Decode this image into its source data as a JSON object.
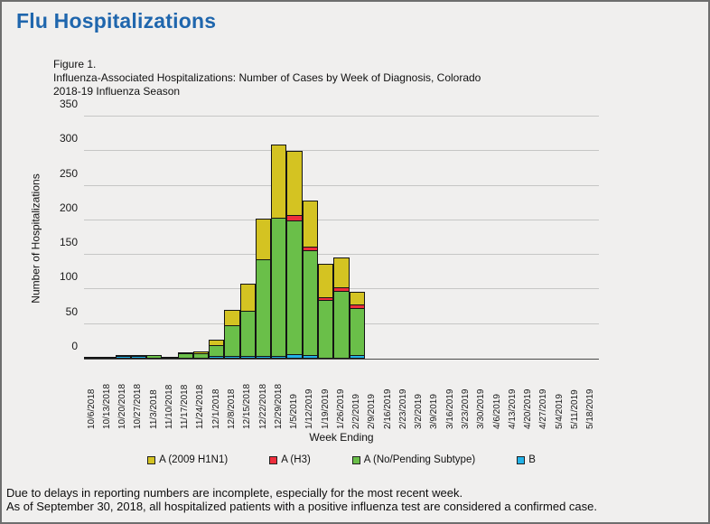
{
  "page": {
    "title": "Flu Hospitalizations",
    "caption_line1": "Figure 1.",
    "caption_line2": "Influenza-Associated Hospitalizations: Number of  Cases by Week of Diagnosis, Colorado",
    "caption_line3": "2018-19  Influenza Season",
    "footer_line1": "Due to delays in reporting numbers are incomplete, especially for the most recent week.",
    "footer_line2": "As of September 30, 2018, all hospitalized patients with a positive influenza test are considered a confirmed case."
  },
  "colors": {
    "title_blue": "#1f66ad",
    "background": "#f0efee",
    "gridline": "#c6c6c5",
    "bar_border": "#141414",
    "h1n1_yellow": "#d4c322",
    "h3_red": "#ee2e3c",
    "no_pending_green": "#6abf49",
    "b_blue": "#22b2e8"
  },
  "chart_data": {
    "type": "bar",
    "stacked": true,
    "title": "Influenza-Associated Hospitalizations: Number of Cases by Week of Diagnosis, Colorado 2018-19 Influenza Season",
    "xlabel": "Week Ending",
    "ylabel": "Number of Hospitalizations",
    "ylim": [
      0,
      350
    ],
    "ytick_step": 50,
    "grid": true,
    "legend_position": "bottom",
    "categories": [
      "10/6/2018",
      "10/13/2018",
      "10/20/2018",
      "10/27/2018",
      "11/3/2018",
      "11/10/2018",
      "11/17/2018",
      "11/24/2018",
      "12/1/2018",
      "12/8/2018",
      "12/15/2018",
      "12/22/2018",
      "12/29/2018",
      "1/5/2019",
      "1/12/2019",
      "1/19/2019",
      "1/26/2019",
      "2/2/2019",
      "2/9/2019",
      "2/16/2019",
      "2/23/2019",
      "3/2/2019",
      "3/9/2019",
      "3/16/2019",
      "3/23/2019",
      "3/30/2019",
      "4/6/2019",
      "4/13/2019",
      "4/20/2019",
      "4/27/2019",
      "5/4/2019",
      "5/11/2019",
      "5/18/2019"
    ],
    "series": [
      {
        "name": "B",
        "color": "#22b2e8",
        "values": [
          0,
          0,
          2,
          2,
          0,
          0,
          0,
          0,
          2,
          2,
          2,
          2,
          3,
          5,
          4,
          0,
          0,
          4,
          0,
          0,
          0,
          0,
          0,
          0,
          0,
          0,
          0,
          0,
          0,
          0,
          0,
          0,
          0
        ]
      },
      {
        "name": "A (No/Pending Subtype)",
        "color": "#6abf49",
        "values": [
          1,
          1,
          2,
          2,
          5,
          2,
          6,
          7,
          16,
          45,
          66,
          140,
          200,
          193,
          152,
          83,
          97,
          68,
          0,
          0,
          0,
          0,
          0,
          0,
          0,
          0,
          0,
          0,
          0,
          0,
          0,
          0,
          0
        ]
      },
      {
        "name": "A (H3)",
        "color": "#ee2e3c",
        "values": [
          0,
          0,
          0,
          0,
          0,
          0,
          0,
          0,
          0,
          0,
          0,
          0,
          0,
          9,
          5,
          4,
          5,
          5,
          0,
          0,
          0,
          0,
          0,
          0,
          0,
          0,
          0,
          0,
          0,
          0,
          0,
          0,
          0
        ]
      },
      {
        "name": "A (2009 H1N1)",
        "color": "#d4c322",
        "values": [
          0,
          0,
          0,
          0,
          0,
          0,
          2,
          3,
          10,
          23,
          40,
          61,
          106,
          93,
          68,
          50,
          44,
          20,
          0,
          0,
          0,
          0,
          0,
          0,
          0,
          0,
          0,
          0,
          0,
          0,
          0,
          0,
          0
        ]
      }
    ],
    "totals": [
      1,
      1,
      4,
      4,
      5,
      2,
      8,
      10,
      28,
      70,
      108,
      203,
      309,
      300,
      229,
      137,
      146,
      97,
      0,
      0,
      0,
      0,
      0,
      0,
      0,
      0,
      0,
      0,
      0,
      0,
      0,
      0,
      0
    ],
    "legend": [
      {
        "label": "A (2009 H1N1)",
        "color": "#d4c322"
      },
      {
        "label": "A (H3)",
        "color": "#ee2e3c"
      },
      {
        "label": "A (No/Pending Subtype)",
        "color": "#6abf49"
      },
      {
        "label": "B",
        "color": "#22b2e8"
      }
    ]
  }
}
